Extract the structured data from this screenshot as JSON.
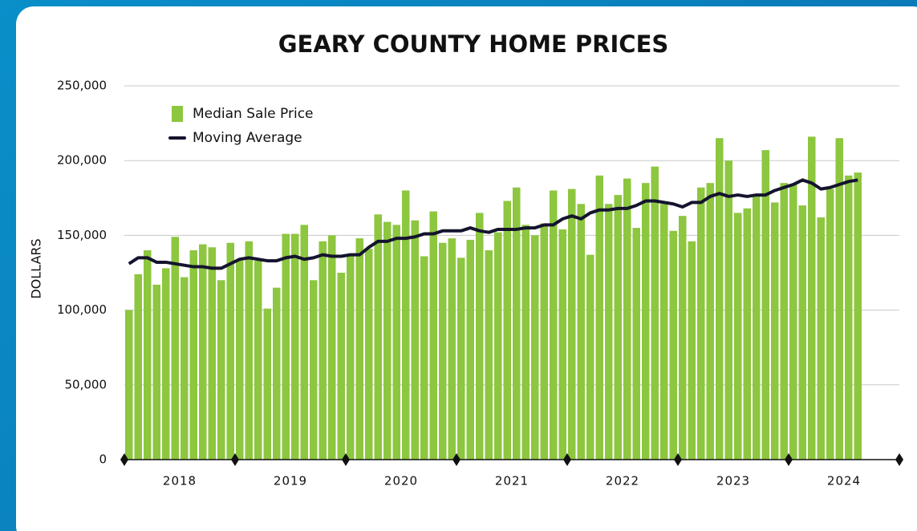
{
  "chart_data": {
    "type": "bar",
    "title": "GEARY COUNTY HOME PRICES",
    "y_label": "DOLLARS",
    "year_labels": [
      "2018",
      "2019",
      "2020",
      "2021",
      "2022",
      "2023",
      "2024"
    ],
    "categories": [
      null,
      null,
      null,
      null,
      null,
      null,
      null,
      null,
      null,
      null,
      null,
      null,
      null,
      null,
      null,
      null,
      null,
      null,
      null,
      null,
      null,
      null,
      null,
      null,
      null,
      null,
      null,
      null,
      null,
      null,
      null,
      null,
      null,
      null,
      null,
      null,
      null,
      null,
      null,
      null,
      null,
      null,
      null,
      null,
      null,
      null,
      null,
      null,
      null,
      null,
      null,
      null,
      null,
      null,
      null,
      null,
      null,
      null,
      null,
      null,
      null,
      null,
      null,
      null,
      null,
      null,
      null,
      null,
      null,
      null,
      null,
      null,
      null,
      null,
      null,
      null,
      null,
      null,
      null,
      null,
      null,
      null,
      null,
      null
    ],
    "series": [
      {
        "name": "Median Sale Price",
        "color": "#8dc63f",
        "values": [
          100000,
          124000,
          140000,
          117000,
          128000,
          149000,
          122000,
          140000,
          144000,
          142000,
          120000,
          145000,
          133000,
          146000,
          133000,
          101000,
          115000,
          151000,
          151000,
          157000,
          120000,
          146000,
          150000,
          125000,
          136000,
          148000,
          141000,
          164000,
          159000,
          157000,
          180000,
          160000,
          136000,
          166000,
          145000,
          148000,
          135000,
          147000,
          165000,
          140000,
          152000,
          173000,
          182000,
          157000,
          150000,
          158000,
          180000,
          154000,
          181000,
          171000,
          137000,
          190000,
          171000,
          177000,
          188000,
          155000,
          185000,
          196000,
          171000,
          153000,
          163000,
          146000,
          182000,
          185000,
          215000,
          200000,
          165000,
          168000,
          176000,
          207000,
          172000,
          185000,
          184000,
          170000,
          216000,
          162000,
          181000,
          215000,
          190000,
          192000,
          null,
          null,
          null,
          null
        ]
      },
      {
        "name": "Moving Average",
        "color": "#14142e",
        "values": [
          131000,
          135000,
          135000,
          132000,
          132000,
          131000,
          130000,
          129000,
          129000,
          128000,
          128000,
          131000,
          134000,
          135000,
          134000,
          133000,
          133000,
          135000,
          136000,
          134000,
          135000,
          137000,
          136000,
          136000,
          137000,
          137000,
          142000,
          146000,
          146000,
          148000,
          148000,
          149000,
          151000,
          151000,
          153000,
          153000,
          153000,
          155000,
          153000,
          152000,
          154000,
          154000,
          154000,
          155000,
          155000,
          157000,
          157000,
          161000,
          163000,
          161000,
          165000,
          167000,
          167000,
          168000,
          168000,
          170000,
          173000,
          173000,
          172000,
          171000,
          169000,
          172000,
          172000,
          176000,
          178000,
          176000,
          177000,
          176000,
          177000,
          177000,
          180000,
          182000,
          184000,
          187000,
          185000,
          181000,
          182000,
          184000,
          186000,
          187000,
          null,
          null,
          null,
          null
        ]
      }
    ],
    "ylim": [
      0,
      250000
    ],
    "yticks": [
      0,
      {
        "value": 50000,
        "label": "50,000"
      },
      {
        "value": 100000,
        "label": "100,000"
      },
      {
        "value": 150000,
        "label": "150,000"
      },
      {
        "value": 200000,
        "label": "200,000"
      },
      {
        "value": 250000,
        "label": "250,000"
      }
    ],
    "grid": true,
    "legend": "top-left"
  }
}
